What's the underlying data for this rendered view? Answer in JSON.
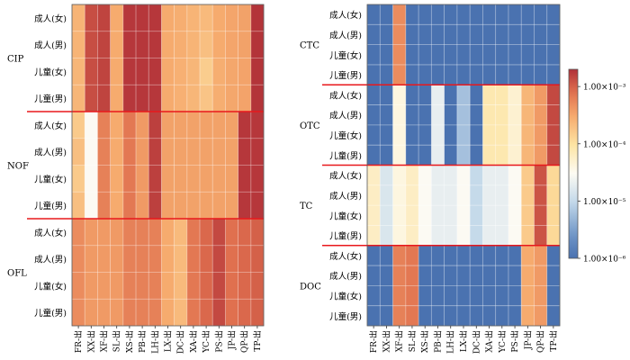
{
  "chart_data": [
    {
      "type": "heatmap",
      "panel": "left",
      "categories": [
        "FR-出",
        "XX-出",
        "XF-出",
        "SL-出",
        "XS-出",
        "PB-出",
        "LH-出",
        "LX-出",
        "DC-出",
        "XA-出",
        "YC-出",
        "PS-出",
        "JP-出",
        "QP-出",
        "TP-出"
      ],
      "row_labels": [
        "成人(女)",
        "成人(男)",
        "儿童(女)",
        "儿童(男)"
      ],
      "groups": [
        {
          "name": "CIP",
          "values": [
            [
              0.00025,
              0.0013,
              0.0015,
              0.0003,
              0.0018,
              0.0018,
              0.0018,
              0.0003,
              0.00028,
              0.00025,
              0.00022,
              0.0003,
              0.00033,
              0.00035,
              0.0019
            ],
            [
              0.00025,
              0.0013,
              0.0015,
              0.0003,
              0.0018,
              0.0018,
              0.0018,
              0.0003,
              0.00028,
              0.00025,
              0.0002,
              0.0003,
              0.00033,
              0.00035,
              0.0019
            ],
            [
              0.00024,
              0.0013,
              0.0015,
              0.0003,
              0.0018,
              0.0018,
              0.0018,
              0.0003,
              0.00027,
              0.00024,
              0.00015,
              0.00028,
              0.00032,
              0.00034,
              0.0019
            ],
            [
              0.00024,
              0.0013,
              0.0015,
              0.0003,
              0.0018,
              0.0018,
              0.0018,
              0.0003,
              0.00027,
              0.00024,
              0.00018,
              0.00028,
              0.00032,
              0.00034,
              0.0019
            ]
          ]
        },
        {
          "name": "NOF",
          "values": [
            [
              0.00016,
              3e-05,
              0.0006,
              0.0003,
              0.0007,
              0.0004,
              0.0016,
              0.00035,
              0.00035,
              0.00035,
              0.00035,
              0.00035,
              0.00035,
              0.0018,
              0.0018
            ],
            [
              0.0002,
              3e-05,
              0.0006,
              0.0003,
              0.0007,
              0.0004,
              0.0016,
              0.00035,
              0.00035,
              0.00035,
              0.00035,
              0.00035,
              0.00035,
              0.0018,
              0.0018
            ],
            [
              0.00016,
              3e-05,
              0.0006,
              0.0003,
              0.0007,
              0.0004,
              0.0016,
              0.00035,
              0.00035,
              0.00035,
              0.00035,
              0.00035,
              0.00035,
              0.0018,
              0.0018
            ],
            [
              0.0002,
              3e-05,
              0.0006,
              0.0003,
              0.0007,
              0.0004,
              0.0016,
              0.00035,
              0.00035,
              0.00035,
              0.00035,
              0.00035,
              0.00035,
              0.0018,
              0.0018
            ]
          ]
        },
        {
          "name": "OFL",
          "values": [
            [
              0.0005,
              0.0004,
              0.0004,
              0.0004,
              0.0006,
              0.0006,
              0.0006,
              0.0003,
              0.00022,
              0.0007,
              0.0009,
              0.0014,
              0.0008,
              0.0009,
              0.001
            ],
            [
              0.0005,
              0.0004,
              0.0004,
              0.0004,
              0.0006,
              0.0006,
              0.0006,
              0.0003,
              0.00022,
              0.0007,
              0.0009,
              0.0014,
              0.0008,
              0.0009,
              0.001
            ],
            [
              0.0005,
              0.0004,
              0.0004,
              0.0004,
              0.0006,
              0.0006,
              0.0006,
              0.0003,
              0.00022,
              0.0007,
              0.0009,
              0.0014,
              0.0008,
              0.0009,
              0.001
            ],
            [
              0.0005,
              0.0004,
              0.0004,
              0.0004,
              0.0006,
              0.0006,
              0.0006,
              0.0003,
              0.00022,
              0.0007,
              0.0009,
              0.0014,
              0.0008,
              0.0009,
              0.001
            ]
          ]
        }
      ]
    },
    {
      "type": "heatmap",
      "panel": "right",
      "categories": [
        "FR-出",
        "XX-出",
        "XF-出",
        "SL-出",
        "XS-出",
        "PB-出",
        "LH-出",
        "LX-出",
        "DC-出",
        "XA-出",
        "YC-出",
        "PS-出",
        "JP-出",
        "QP-出",
        "TP-出"
      ],
      "row_labels": [
        "成人(女)",
        "成人(男)",
        "儿童(女)",
        "儿童(男)"
      ],
      "groups": [
        {
          "name": "CTC",
          "values": [
            [
              1e-06,
              1e-06,
              0.0005,
              1e-06,
              1e-06,
              1e-06,
              1e-06,
              1e-06,
              1e-06,
              1e-06,
              1e-06,
              1e-06,
              1e-06,
              1e-06,
              1e-06
            ],
            [
              1e-06,
              1e-06,
              0.0005,
              1e-06,
              1e-06,
              1e-06,
              1e-06,
              1e-06,
              1e-06,
              1e-06,
              1e-06,
              1e-06,
              1e-06,
              1e-06,
              1e-06
            ],
            [
              1e-06,
              1e-06,
              0.0005,
              1e-06,
              1e-06,
              1e-06,
              1e-06,
              1e-06,
              1e-06,
              1e-06,
              1e-06,
              1e-06,
              1e-06,
              1e-06,
              1e-06
            ],
            [
              1e-06,
              1e-06,
              0.0005,
              1e-06,
              1e-06,
              1e-06,
              1e-06,
              1e-06,
              1e-06,
              1e-06,
              1e-06,
              1e-06,
              1e-06,
              1e-06,
              1e-06
            ]
          ]
        },
        {
          "name": "OTC",
          "values": [
            [
              1e-06,
              1e-06,
              4e-05,
              1e-06,
              1e-06,
              2e-05,
              1e-06,
              6e-06,
              1e-06,
              8e-05,
              8e-05,
              5e-05,
              0.00024,
              0.0004,
              0.0014
            ],
            [
              1e-06,
              1e-06,
              4e-05,
              1e-06,
              1e-06,
              2e-05,
              1e-06,
              6e-06,
              1e-06,
              8e-05,
              8e-05,
              5e-05,
              0.00024,
              0.0004,
              0.0014
            ],
            [
              1e-06,
              1e-06,
              4e-05,
              1e-06,
              1e-06,
              2e-05,
              1e-06,
              6e-06,
              1e-06,
              8e-05,
              8e-05,
              5e-05,
              0.00024,
              0.0004,
              0.0014
            ],
            [
              1e-06,
              1e-06,
              4e-05,
              1e-06,
              1e-06,
              2e-05,
              1e-06,
              6e-06,
              1e-06,
              8e-05,
              8e-05,
              5e-05,
              0.00024,
              0.0004,
              0.0014
            ]
          ]
        },
        {
          "name": "TC",
          "values": [
            [
              6e-05,
              1.5e-05,
              4e-05,
              6e-05,
              3e-05,
              2e-05,
              2e-05,
              3e-05,
              1e-05,
              2e-05,
              2e-05,
              3e-05,
              0.00016,
              0.0012,
              0.00012
            ],
            [
              6e-05,
              1.5e-05,
              4e-05,
              6e-05,
              3e-05,
              2e-05,
              2e-05,
              3e-05,
              1e-05,
              2e-05,
              2e-05,
              3e-05,
              0.00016,
              0.0012,
              0.00012
            ],
            [
              6e-05,
              1.5e-05,
              4e-05,
              6e-05,
              3e-05,
              2e-05,
              2e-05,
              3e-05,
              1e-05,
              2e-05,
              2e-05,
              3e-05,
              0.00016,
              0.0012,
              0.00012
            ],
            [
              6e-05,
              1.5e-05,
              4e-05,
              6e-05,
              3e-05,
              2e-05,
              2e-05,
              3e-05,
              1e-05,
              2e-05,
              2e-05,
              3e-05,
              0.00016,
              0.0012,
              0.00012
            ]
          ]
        },
        {
          "name": "DOC",
          "values": [
            [
              1e-06,
              1e-06,
              0.0006,
              0.0007,
              1e-06,
              1e-06,
              1e-06,
              1e-06,
              1e-06,
              1e-06,
              1e-06,
              1e-06,
              0.0003,
              0.0004,
              1e-06
            ],
            [
              1e-06,
              1e-06,
              0.0006,
              0.0007,
              1e-06,
              1e-06,
              1e-06,
              1e-06,
              1e-06,
              1e-06,
              1e-06,
              1e-06,
              0.0003,
              0.0004,
              1e-06
            ],
            [
              1e-06,
              1e-06,
              0.0006,
              0.0007,
              1e-06,
              1e-06,
              1e-06,
              1e-06,
              1e-06,
              1e-06,
              1e-06,
              1e-06,
              0.0003,
              0.0004,
              1e-06
            ],
            [
              1e-06,
              1e-06,
              0.0006,
              0.0007,
              1e-06,
              1e-06,
              1e-06,
              1e-06,
              1e-06,
              1e-06,
              1e-06,
              1e-06,
              0.0003,
              0.0004,
              1e-06
            ]
          ]
        }
      ]
    }
  ],
  "colorbar": {
    "scale": "log",
    "range": [
      1e-06,
      0.002
    ],
    "ticks": [
      {
        "value": 0.001,
        "label": "1.00×10⁻³"
      },
      {
        "value": 0.0001,
        "label": "1.00×10⁻⁴"
      },
      {
        "value": 1e-05,
        "label": "1.00×10⁻⁵"
      },
      {
        "value": 1e-06,
        "label": "1.00×10⁻⁶"
      }
    ],
    "colors": [
      "#4a72b0",
      "#fdfbf3",
      "#b03038"
    ]
  },
  "separator_color": "#e8181c"
}
